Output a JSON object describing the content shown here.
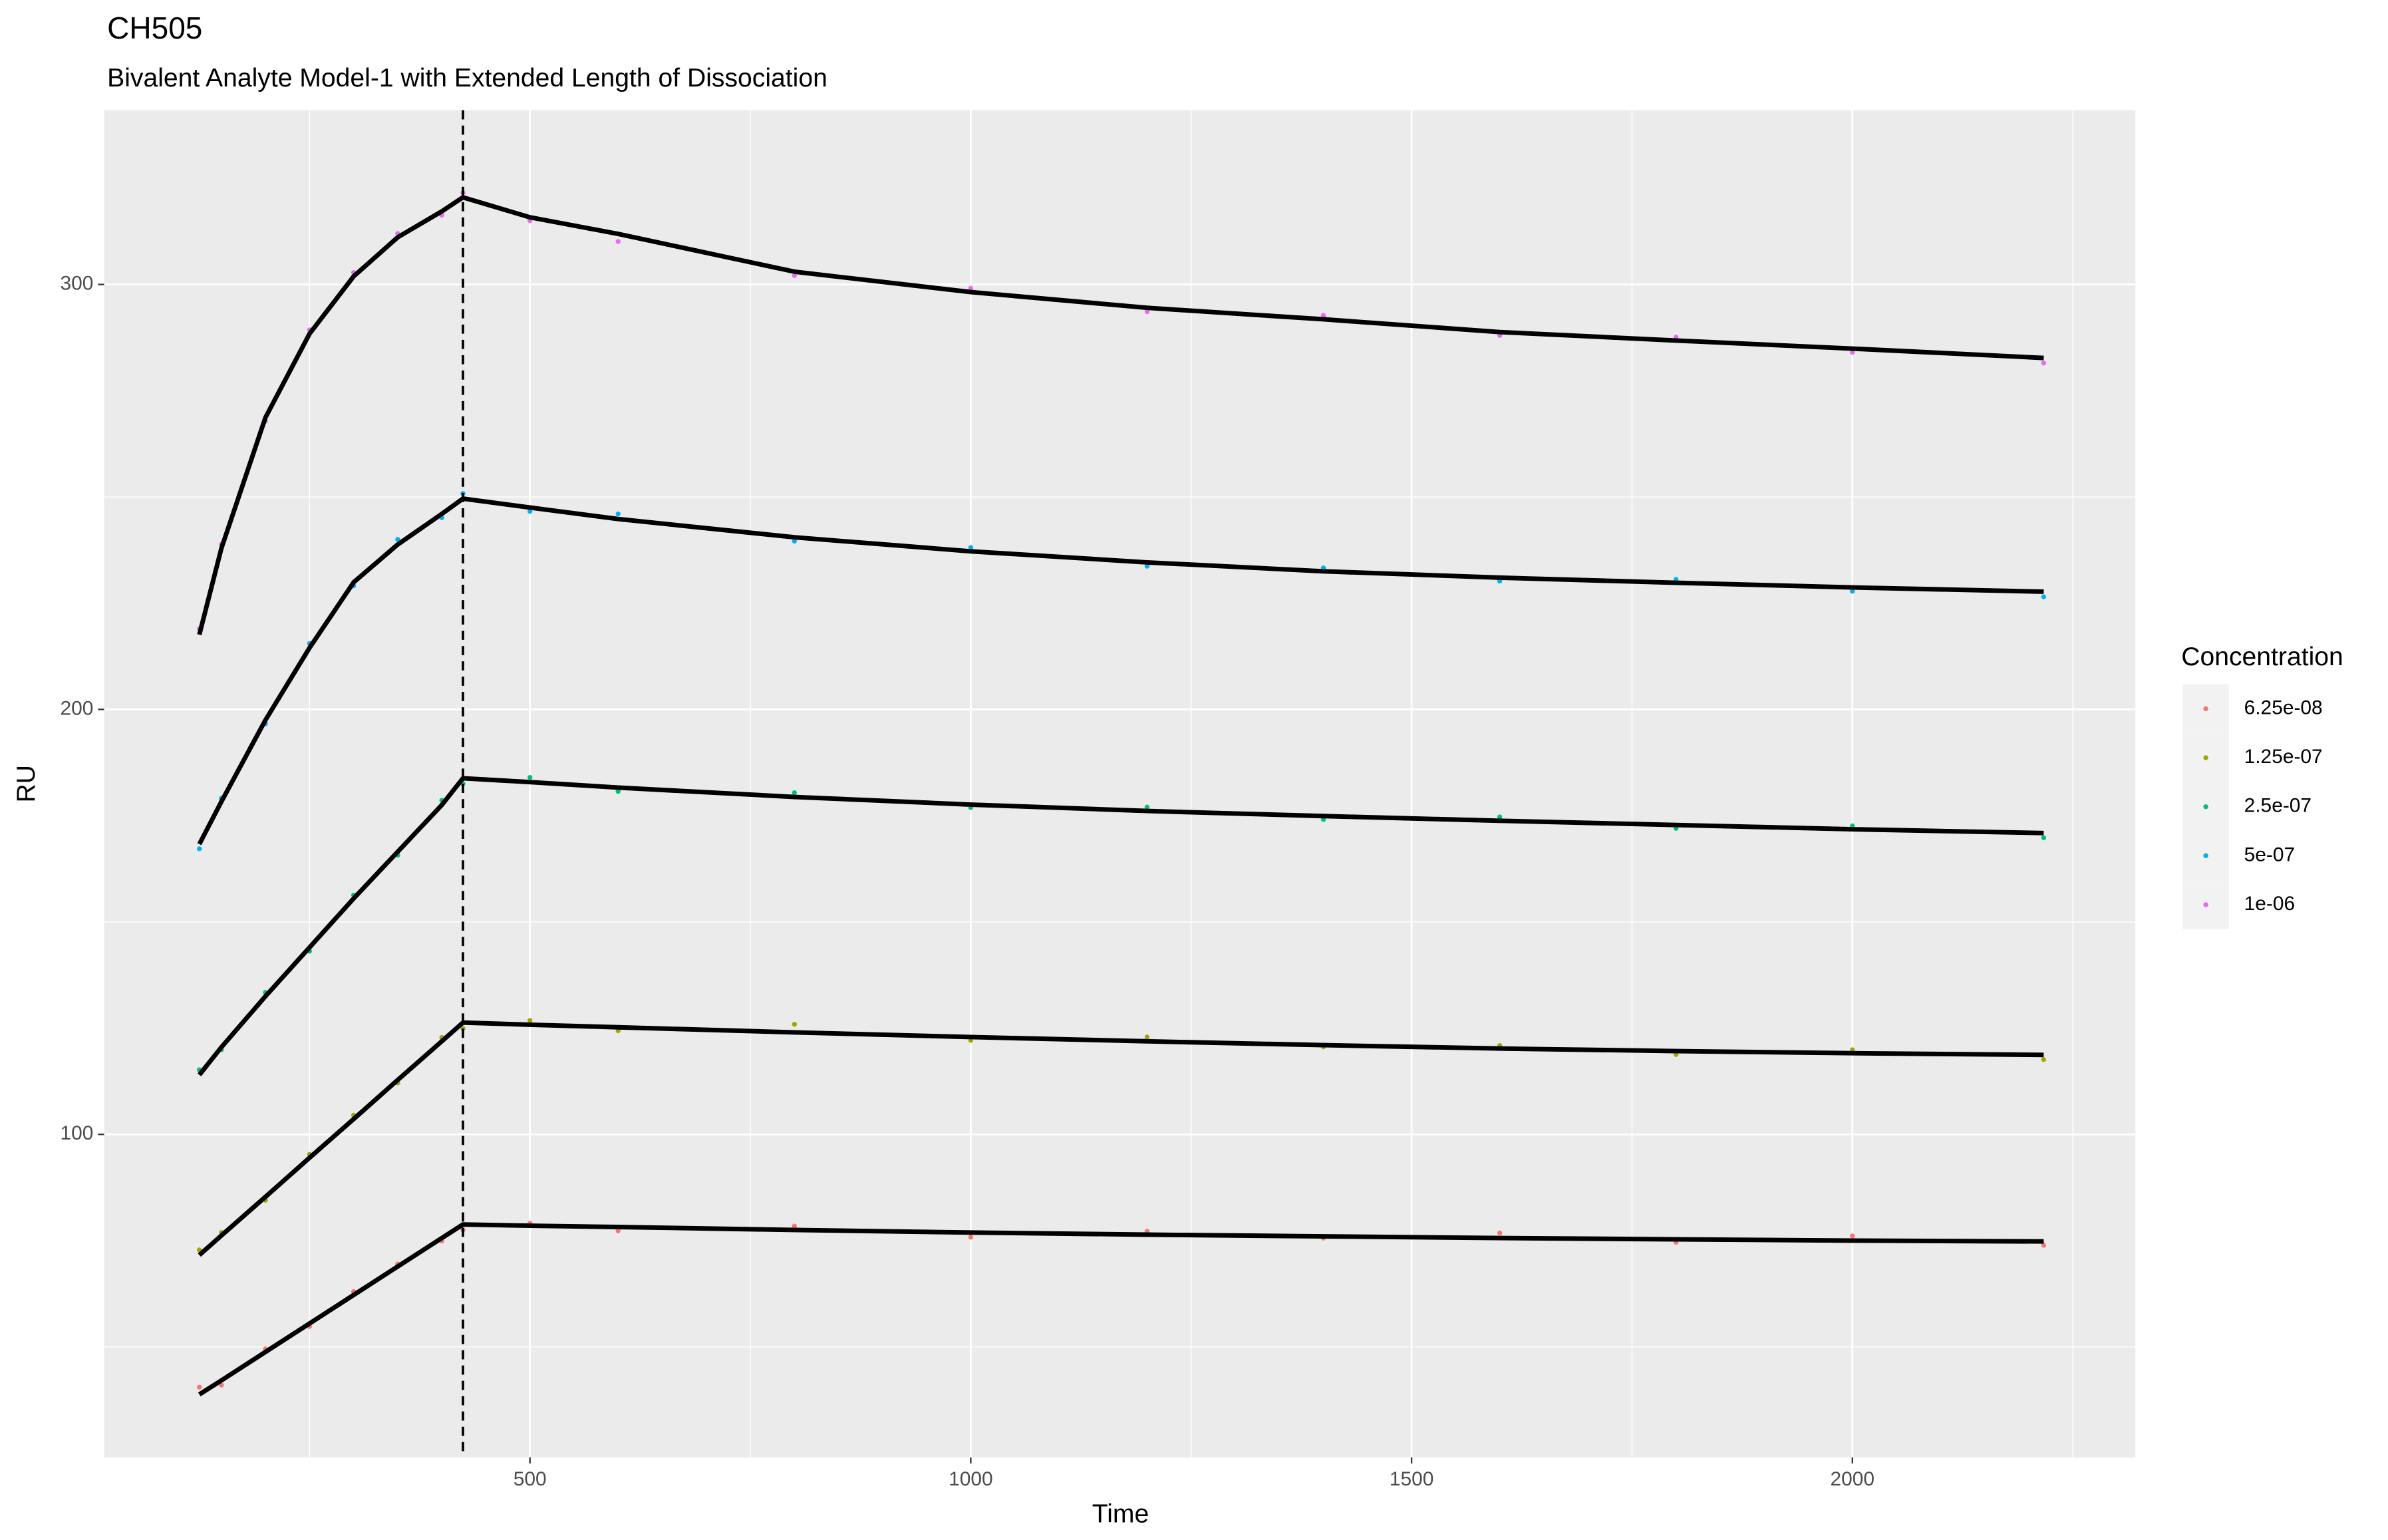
{
  "chart_data": {
    "type": "scatter",
    "title": "CH505",
    "subtitle": "Bivalent Analyte Model-1 with Extended Length of Dissociation",
    "x_label": "Time",
    "y_label": "RU",
    "legend_title": "Concentration",
    "legend_position": "right",
    "grid": true,
    "xlim": [
      17,
      2321
    ],
    "ylim": [
      24,
      341
    ],
    "xticks": [
      500,
      1000,
      1500,
      2000
    ],
    "yticks": [
      100,
      200,
      300
    ],
    "xminor": [
      250,
      750,
      1250,
      1750,
      2250
    ],
    "yminor": [
      50,
      150,
      250
    ],
    "vline": 424,
    "fit_color": "#000000",
    "x": [
      125,
      150,
      200,
      250,
      300,
      350,
      400,
      424,
      500,
      600,
      800,
      1000,
      1200,
      1400,
      1600,
      1800,
      2000,
      2217
    ],
    "series": [
      {
        "name": "6.25e-08",
        "color": "#F8766D",
        "values": [
          40.5,
          41,
          49.5,
          54.8,
          63,
          69.5,
          74.9,
          77.5,
          79.1,
          77.3,
          78.4,
          75.8,
          77.2,
          75.6,
          76.8,
          74.6,
          76.1,
          73.9
        ],
        "fit": [
          38.8,
          42.1,
          48.8,
          55.5,
          62.2,
          68.9,
          75.6,
          78.8,
          78.5,
          78.2,
          77.5,
          76.9,
          76.4,
          76,
          75.6,
          75.3,
          75,
          74.8
        ]
      },
      {
        "name": "1.25e-07",
        "color": "#A3A500",
        "values": [
          72.8,
          76.9,
          84.5,
          95.3,
          104.5,
          112.1,
          122.8,
          124.9,
          126.8,
          124.4,
          125.9,
          122.1,
          122.9,
          120.6,
          120.9,
          118.8,
          119.9,
          117.6
        ],
        "fit": [
          71.6,
          76.2,
          85.3,
          94.5,
          103.6,
          112.8,
          121.9,
          126.3,
          125.8,
          125.2,
          124,
          122.9,
          121.9,
          121,
          120.2,
          119.6,
          119.1,
          118.7
        ]
      },
      {
        "name": "2.5e-07",
        "color": "#00BF7D",
        "values": [
          115.2,
          119.9,
          133.4,
          143.1,
          156.3,
          165.7,
          178.6,
          182.5,
          184,
          180.7,
          180.4,
          176.9,
          177,
          174.1,
          174.7,
          172,
          172.6,
          169.8
        ],
        "fit": [
          114,
          120.5,
          132.5,
          144,
          155.5,
          166.5,
          177.5,
          183.8,
          182.9,
          181.6,
          179.4,
          177.6,
          176.1,
          174.9,
          173.8,
          172.8,
          171.8,
          170.9
        ]
      },
      {
        "name": "5e-07",
        "color": "#00B0F6",
        "values": [
          167.2,
          179.1,
          196.6,
          215.5,
          229.1,
          240,
          245.1,
          250.8,
          246.6,
          246,
          239.6,
          238.1,
          233.7,
          233.3,
          230.2,
          230.6,
          227.8,
          226.5
        ],
        "fit": [
          168.3,
          178.3,
          197.5,
          214.5,
          229.9,
          238.8,
          246,
          249.6,
          247.5,
          244.8,
          240.5,
          237.2,
          234.6,
          232.5,
          231,
          229.8,
          228.7,
          227.7
        ]
      },
      {
        "name": "1e-06",
        "color": "#E76BF3",
        "values": [
          219,
          238.9,
          267.8,
          289.3,
          302.8,
          312,
          316.3,
          321.6,
          315,
          310.1,
          302.1,
          299.1,
          293.6,
          292.7,
          288,
          287.6,
          284,
          281.5
        ],
        "fit": [
          217.6,
          237.9,
          268.7,
          288.4,
          301.9,
          311.1,
          317.2,
          320.5,
          315.8,
          311.9,
          303,
          298.2,
          294.5,
          291.8,
          288.8,
          286.8,
          284.9,
          282.7
        ]
      }
    ]
  }
}
